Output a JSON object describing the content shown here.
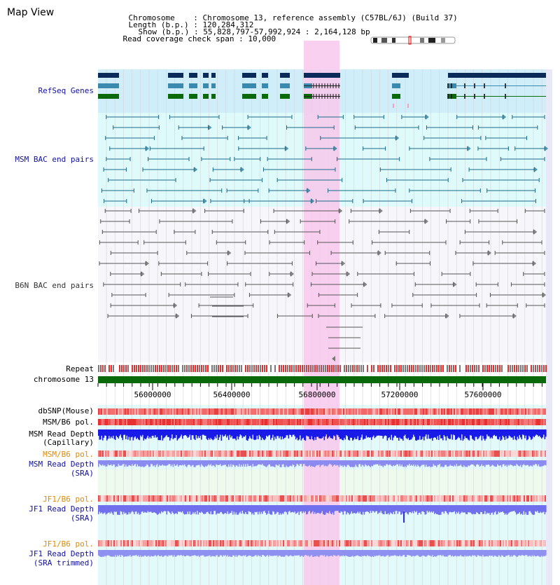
{
  "page": {
    "title": "Map View",
    "info": {
      "chromosome_key": "Chromosome",
      "chromosome_val": "Chromosome 13, reference assembly (C57BL/6J) (Build 37)",
      "length_key": "Length (b.p.)",
      "length_val": "120,284,312",
      "show_key": "Show (b.p.)",
      "show_val": "55,828,797-57,992,924 : 2,164,128 bp",
      "span_key": "Read coverage check span",
      "span_val": "10,000"
    }
  },
  "tracks": {
    "refseq": "RefSeq Genes",
    "msm_bac": "MSM BAC end pairs",
    "b6n_bac": "B6N BAC end pairs",
    "repeat": "Repeat",
    "chromosome": "chromosome 13",
    "dbsnp": "dbSNP(Mouse)",
    "msm_b6_pol_1": "MSM/B6 pol.",
    "msm_depth_cap_1": "MSM Read Depth",
    "msm_depth_cap_2": "(Capillary)",
    "msm_b6_pol_2": "MSM/B6 pol.",
    "msm_depth_sra_1": "MSM Read Depth",
    "msm_depth_sra_2": "(SRA)",
    "jf1_pol_1": "JF1/B6 pol.",
    "jf1_depth_sra_1": "JF1 Read Depth",
    "jf1_depth_sra_2": "(SRA)",
    "jf1_pol_2": "JF1/B6 pol.",
    "jf1_depth_trim_1": "JF1 Read Depth",
    "jf1_depth_trim_2": "(SRA trimmed)"
  },
  "axis": {
    "ticks": [
      "56000000",
      "56400000",
      "56800000",
      "57200000",
      "57600000"
    ]
  },
  "colors": {
    "highlight": "#f8c8ec",
    "refseq_bg": "#cfeefa",
    "msm_bg": "#dffafa",
    "gene_navy": "#0a2a5a",
    "gene_teal": "#3a8ab0",
    "gene_green": "#0a6a0a",
    "chrom_bar": "#0a6a0a",
    "label_blue": "#1010a0",
    "label_orange": "#e08a00"
  }
}
